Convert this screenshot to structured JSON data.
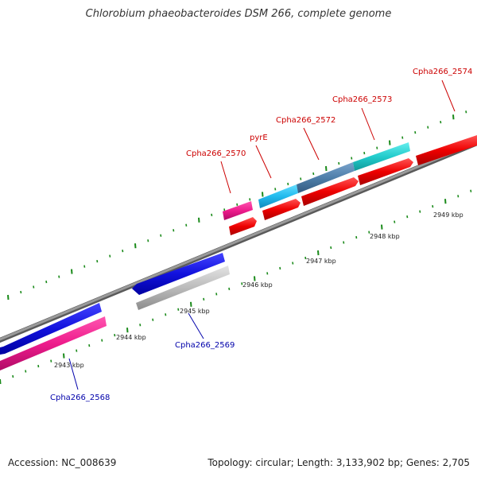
{
  "title": "Chlorobium phaeobacteroides DSM 266, complete genome",
  "footer": {
    "accession": "Accession: NC_008639",
    "topology": "Topology: circular; Length: 3,133,902 bp; Genes: 2,705"
  },
  "scale_labels": [
    "2943 kbp",
    "2944 kbp",
    "2945 kbp",
    "2946 kbp",
    "2947 kbp",
    "2948 kbp",
    "2949 kbp"
  ],
  "gene_labels_forward": [
    {
      "name": "Cpha266_2570",
      "color": "#cc0000"
    },
    {
      "name": "pyrE",
      "color": "#cc0000"
    },
    {
      "name": "Cpha266_2572",
      "color": "#cc0000"
    },
    {
      "name": "Cpha266_2573",
      "color": "#cc0000"
    },
    {
      "name": "Cpha266_2574",
      "color": "#cc0000"
    }
  ],
  "gene_labels_reverse": [
    {
      "name": "Cpha266_2569",
      "color": "#0000aa"
    },
    {
      "name": "Cpha266_2568",
      "color": "#0000aa"
    }
  ],
  "colors": {
    "forward_cds": "#ee0000",
    "reverse_cds": "#1111dd",
    "gene_magenta": "#ee1c8c",
    "gene_cyan": "#22bbee",
    "gene_teal": "#22cccc",
    "gene_steel": "#4f7faa",
    "gene_gray": "#bbbbbb",
    "backbone": "#888888",
    "tick": "#1a8a1a"
  }
}
